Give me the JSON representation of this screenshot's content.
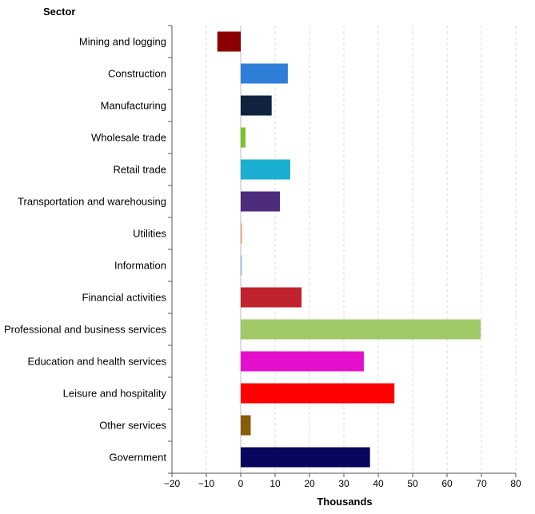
{
  "chart_data": {
    "type": "bar",
    "orientation": "horizontal",
    "category_axis_title": "Sector",
    "value_axis_title": "Thousands",
    "categories": [
      "Mining and logging",
      "Construction",
      "Manufacturing",
      "Wholesale trade",
      "Retail trade",
      "Transportation and warehousing",
      "Utilities",
      "Information",
      "Financial activities",
      "Professional and business services",
      "Education and health services",
      "Leisure and hospitality",
      "Other services",
      "Government"
    ],
    "values": [
      -6.8,
      13.7,
      9.0,
      1.4,
      14.4,
      11.4,
      0.4,
      0.3,
      17.7,
      69.8,
      35.8,
      44.7,
      2.9,
      37.6
    ],
    "colors": [
      "#8B0000",
      "#2F7FD8",
      "#10233E",
      "#7DC12C",
      "#1AAFD0",
      "#4D2C7E",
      "#F4A46A",
      "#9EB3E6",
      "#C0232D",
      "#A2C968",
      "#E40FCC",
      "#FF0000",
      "#8B5A0A",
      "#07075E"
    ],
    "xlim": [
      -20,
      80
    ],
    "ticks": [
      -20,
      -10,
      0,
      10,
      20,
      30,
      40,
      50,
      60,
      70,
      80
    ],
    "tick_labels": [
      "−20",
      "−10",
      "0",
      "10",
      "20",
      "30",
      "40",
      "50",
      "60",
      "70",
      "80"
    ],
    "grid": "vertical-dashed"
  }
}
